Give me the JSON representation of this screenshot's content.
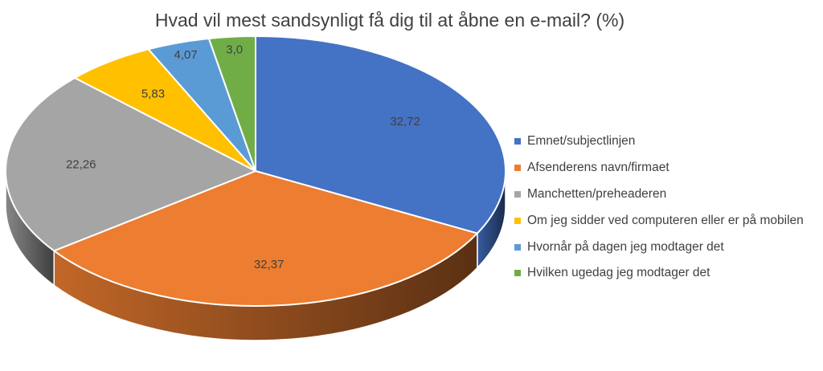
{
  "chart_data": {
    "type": "pie",
    "title": "Hvad vil mest sandsynligt få dig til at åbne en e-mail? (%)",
    "slices": [
      {
        "label": "Emnet/subjectlinjen",
        "value": 32.72,
        "display": "32,72",
        "color": "#4472c4"
      },
      {
        "label": "Afsenderens navn/firmaet",
        "value": 32.37,
        "display": "32,37",
        "color": "#ed7d31"
      },
      {
        "label": "Manchetten/preheaderen",
        "value": 22.26,
        "display": "22,26",
        "color": "#a5a5a5"
      },
      {
        "label": "Om jeg sidder ved computeren eller er på mobilen",
        "value": 5.83,
        "display": "5,83",
        "color": "#ffc000"
      },
      {
        "label": "Hvornår på dagen jeg modtager det",
        "value": 4.07,
        "display": "4,07",
        "color": "#5b9bd5"
      },
      {
        "label": "Hvilken ugedag jeg modtager det",
        "value": 3.0,
        "display": "3,0",
        "color": "#70ad47"
      }
    ],
    "legend_position": "right"
  }
}
